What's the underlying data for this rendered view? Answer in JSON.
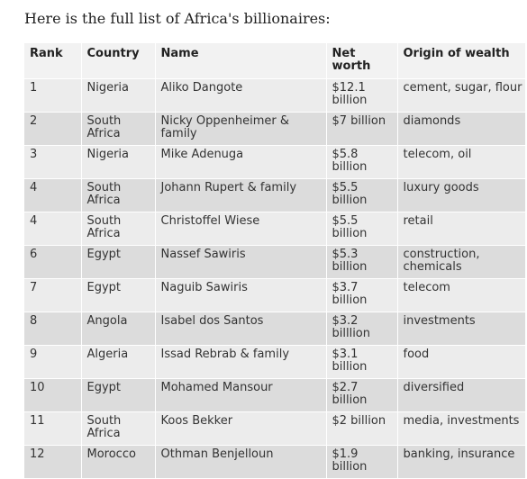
{
  "intro_text": "Here is the full list of Africa's billionaires:",
  "table": {
    "headers": [
      "Rank",
      "Country",
      "Name",
      "Net worth",
      "Origin of wealth"
    ],
    "rows": [
      {
        "rank": "1",
        "country": "Nigeria",
        "name": "Aliko Dangote",
        "net_worth": "$12.1 billion",
        "origin": "cement, sugar, flour"
      },
      {
        "rank": "2",
        "country": "South Africa",
        "name": "Nicky Oppenheimer & family",
        "net_worth": "$7 billion",
        "origin": "diamonds"
      },
      {
        "rank": "3",
        "country": "Nigeria",
        "name": "Mike Adenuga",
        "net_worth": "$5.8 billion",
        "origin": "telecom, oil"
      },
      {
        "rank": "4",
        "country": "South Africa",
        "name": "Johann Rupert & family",
        "net_worth": "$5.5 billion",
        "origin": "luxury goods"
      },
      {
        "rank": "4",
        "country": "South Africa",
        "name": "Christoffel Wiese",
        "net_worth": "$5.5 billion",
        "origin": "retail"
      },
      {
        "rank": "6",
        "country": "Egypt",
        "name": "Nassef Sawiris",
        "net_worth": "$5.3 billion",
        "origin": "construction, chemicals"
      },
      {
        "rank": "7",
        "country": "Egypt",
        "name": "Naguib Sawiris",
        "net_worth": "$3.7 billion",
        "origin": "telecom"
      },
      {
        "rank": "8",
        "country": "Angola",
        "name": "Isabel dos Santos",
        "net_worth": "$3.2 billlion",
        "origin": "investments"
      },
      {
        "rank": "9",
        "country": "Algeria",
        "name": "Issad Rebrab & family",
        "net_worth": "$3.1 billion",
        "origin": "food"
      },
      {
        "rank": "10",
        "country": "Egypt",
        "name": "Mohamed Mansour",
        "net_worth": "$2.7 billion",
        "origin": "diversified"
      },
      {
        "rank": "11",
        "country": "South Africa",
        "name": "Koos Bekker",
        "net_worth": "$2 billion",
        "origin": "media, investments"
      },
      {
        "rank": "12",
        "country": "Morocco",
        "name": "Othman Benjelloun",
        "net_worth": "$1.9 billion",
        "origin": "banking, insurance"
      }
    ]
  }
}
